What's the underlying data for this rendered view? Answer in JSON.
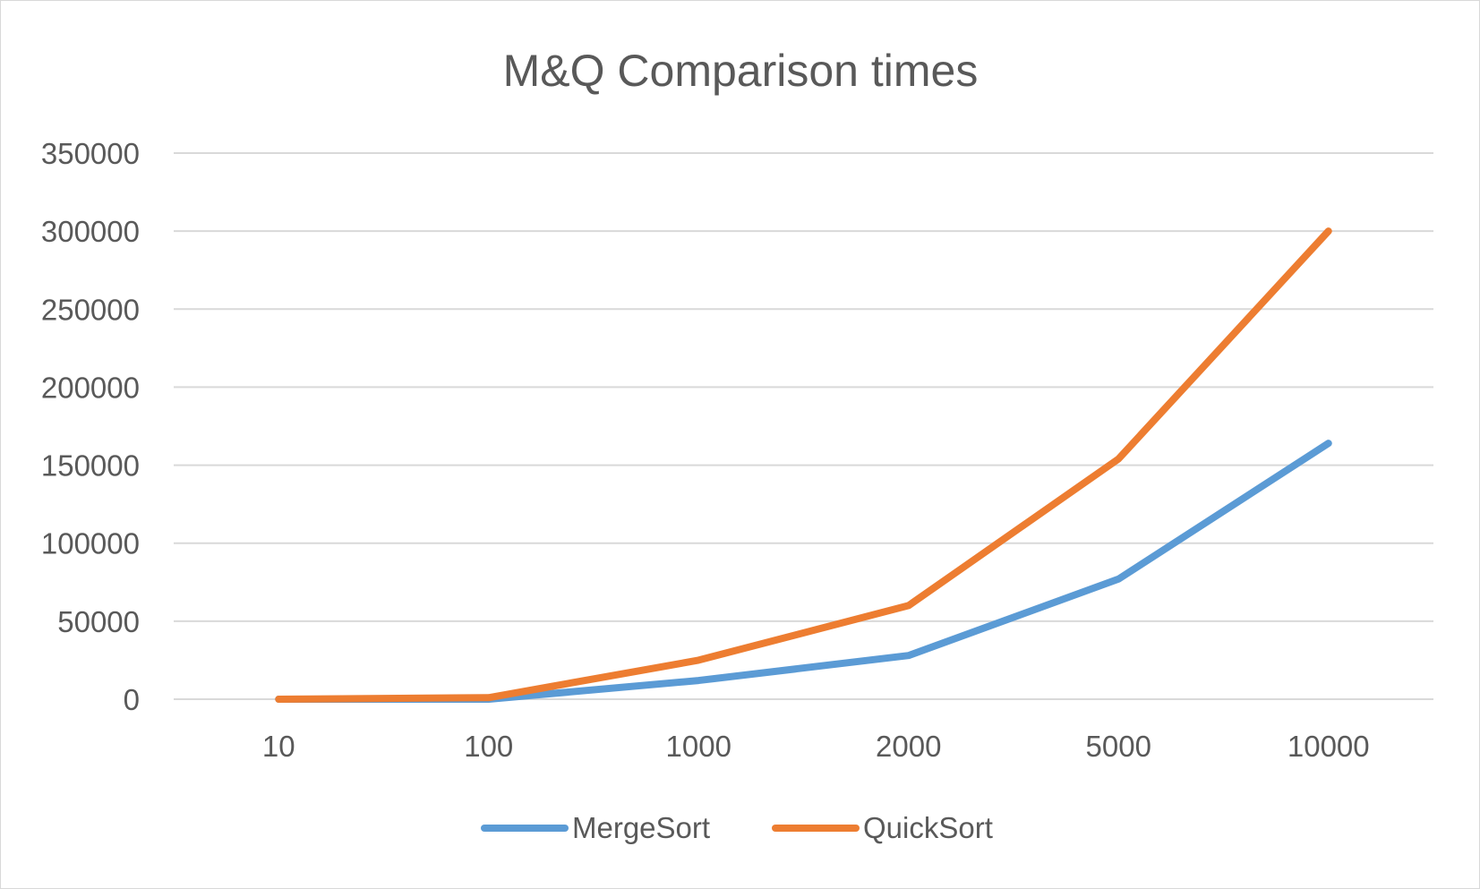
{
  "chart_data": {
    "type": "line",
    "title": "M&Q Comparison times",
    "xlabel": "",
    "ylabel": "",
    "categories": [
      "10",
      "100",
      "1000",
      "2000",
      "5000",
      "10000"
    ],
    "series": [
      {
        "name": "MergeSort",
        "color": "#5b9bd5",
        "values": [
          0,
          0,
          12000,
          28000,
          77000,
          164000
        ]
      },
      {
        "name": "QuickSort",
        "color": "#ed7d31",
        "values": [
          0,
          1000,
          25000,
          60000,
          154000,
          300000
        ]
      }
    ],
    "y_ticks": [
      "0",
      "50000",
      "100000",
      "150000",
      "200000",
      "250000",
      "300000",
      "350000"
    ],
    "ylim": [
      0,
      350000
    ],
    "grid": true,
    "legend": "bottom",
    "gridline_color": "#d9d9d9",
    "text_color": "#595959"
  }
}
